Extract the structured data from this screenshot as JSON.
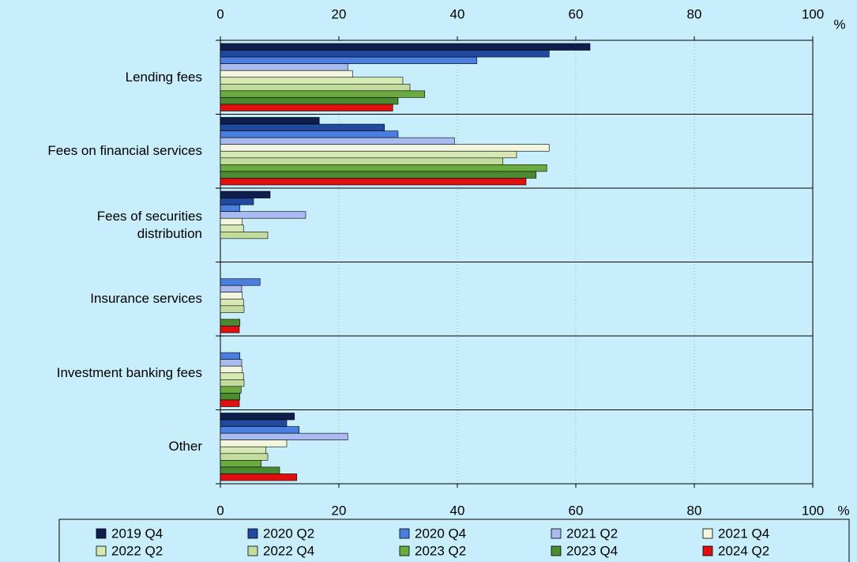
{
  "chart_data": {
    "type": "hbar",
    "x_unit": "%",
    "xlim": [
      0,
      100
    ],
    "xticks": [
      0,
      20,
      40,
      60,
      80,
      100
    ],
    "grid": true,
    "categories": [
      "Lending fees",
      "Fees on financial services",
      "Fees of securities\ndistribution",
      "Insurance services",
      "Investment banking fees",
      "Other"
    ],
    "series": [
      {
        "name": "2019 Q4",
        "color": "#0f1f4d",
        "values": [
          62.4,
          16.7,
          8.4,
          null,
          null,
          12.5
        ]
      },
      {
        "name": "2020 Q2",
        "color": "#1f4a9e",
        "values": [
          55.5,
          27.7,
          5.6,
          null,
          null,
          11.2
        ]
      },
      {
        "name": "2020 Q4",
        "color": "#4a7fe0",
        "values": [
          43.3,
          30,
          3.3,
          6.7,
          3.3,
          13.3
        ]
      },
      {
        "name": "2021 Q2",
        "color": "#a9baf0",
        "values": [
          21.5,
          39.5,
          14.4,
          3.6,
          3.6,
          21.5
        ]
      },
      {
        "name": "2021 Q4",
        "color": "#f2f6de",
        "values": [
          22.3,
          55.5,
          3.7,
          3.7,
          3.7,
          11.2
        ]
      },
      {
        "name": "2022 Q2",
        "color": "#d6e8b4",
        "values": [
          30.8,
          50,
          3.9,
          3.9,
          3.9,
          7.7
        ]
      },
      {
        "name": "2022 Q4",
        "color": "#c2dc9e",
        "values": [
          32,
          47.7,
          8,
          4,
          4,
          8
        ]
      },
      {
        "name": "2023 Q2",
        "color": "#6aaa3e",
        "values": [
          34.5,
          55.1,
          null,
          null,
          3.5,
          6.9
        ]
      },
      {
        "name": "2023 Q4",
        "color": "#4a8a30",
        "values": [
          30,
          53.3,
          null,
          3.3,
          3.3,
          10
        ]
      },
      {
        "name": "2024 Q2",
        "color": "#e01010",
        "values": [
          29.1,
          51.6,
          null,
          3.2,
          3.2,
          12.9
        ]
      }
    ]
  }
}
